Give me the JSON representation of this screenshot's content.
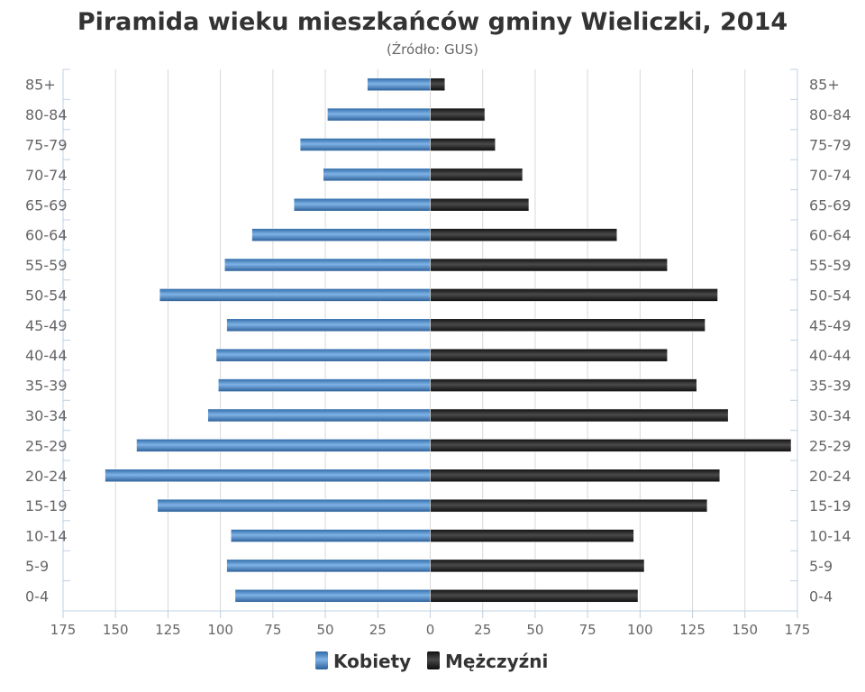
{
  "chart_data": {
    "type": "bar",
    "orientation": "horizontal",
    "title": "Piramida wieku mieszkańców gminy Wieliczki, 2014",
    "subtitle": "(Źródło: GUS)",
    "categories": [
      "85+",
      "80-84",
      "75-79",
      "70-74",
      "65-69",
      "60-64",
      "55-59",
      "50-54",
      "45-49",
      "40-44",
      "35-39",
      "30-34",
      "25-29",
      "20-24",
      "15-19",
      "10-14",
      "5-9",
      "0-4"
    ],
    "series": [
      {
        "name": "Kobiety",
        "color": "#3f7fbf",
        "values": [
          30,
          49,
          62,
          51,
          65,
          85,
          98,
          129,
          97,
          102,
          101,
          106,
          140,
          155,
          130,
          95,
          97,
          93
        ]
      },
      {
        "name": "Mężczyźni",
        "color": "#222222",
        "values": [
          7,
          26,
          31,
          44,
          47,
          89,
          113,
          137,
          131,
          113,
          127,
          142,
          172,
          138,
          132,
          97,
          102,
          99
        ]
      }
    ],
    "xlim": [
      -175,
      175
    ],
    "xticks": [
      -175,
      -150,
      -125,
      -100,
      -75,
      -50,
      -25,
      0,
      25,
      50,
      75,
      100,
      125,
      150,
      175
    ],
    "xtick_labels": [
      "175",
      "150",
      "125",
      "100",
      "75",
      "50",
      "25",
      "0",
      "25",
      "50",
      "75",
      "100",
      "125",
      "150",
      "175"
    ],
    "grid": true,
    "legend": "bottom-center"
  }
}
